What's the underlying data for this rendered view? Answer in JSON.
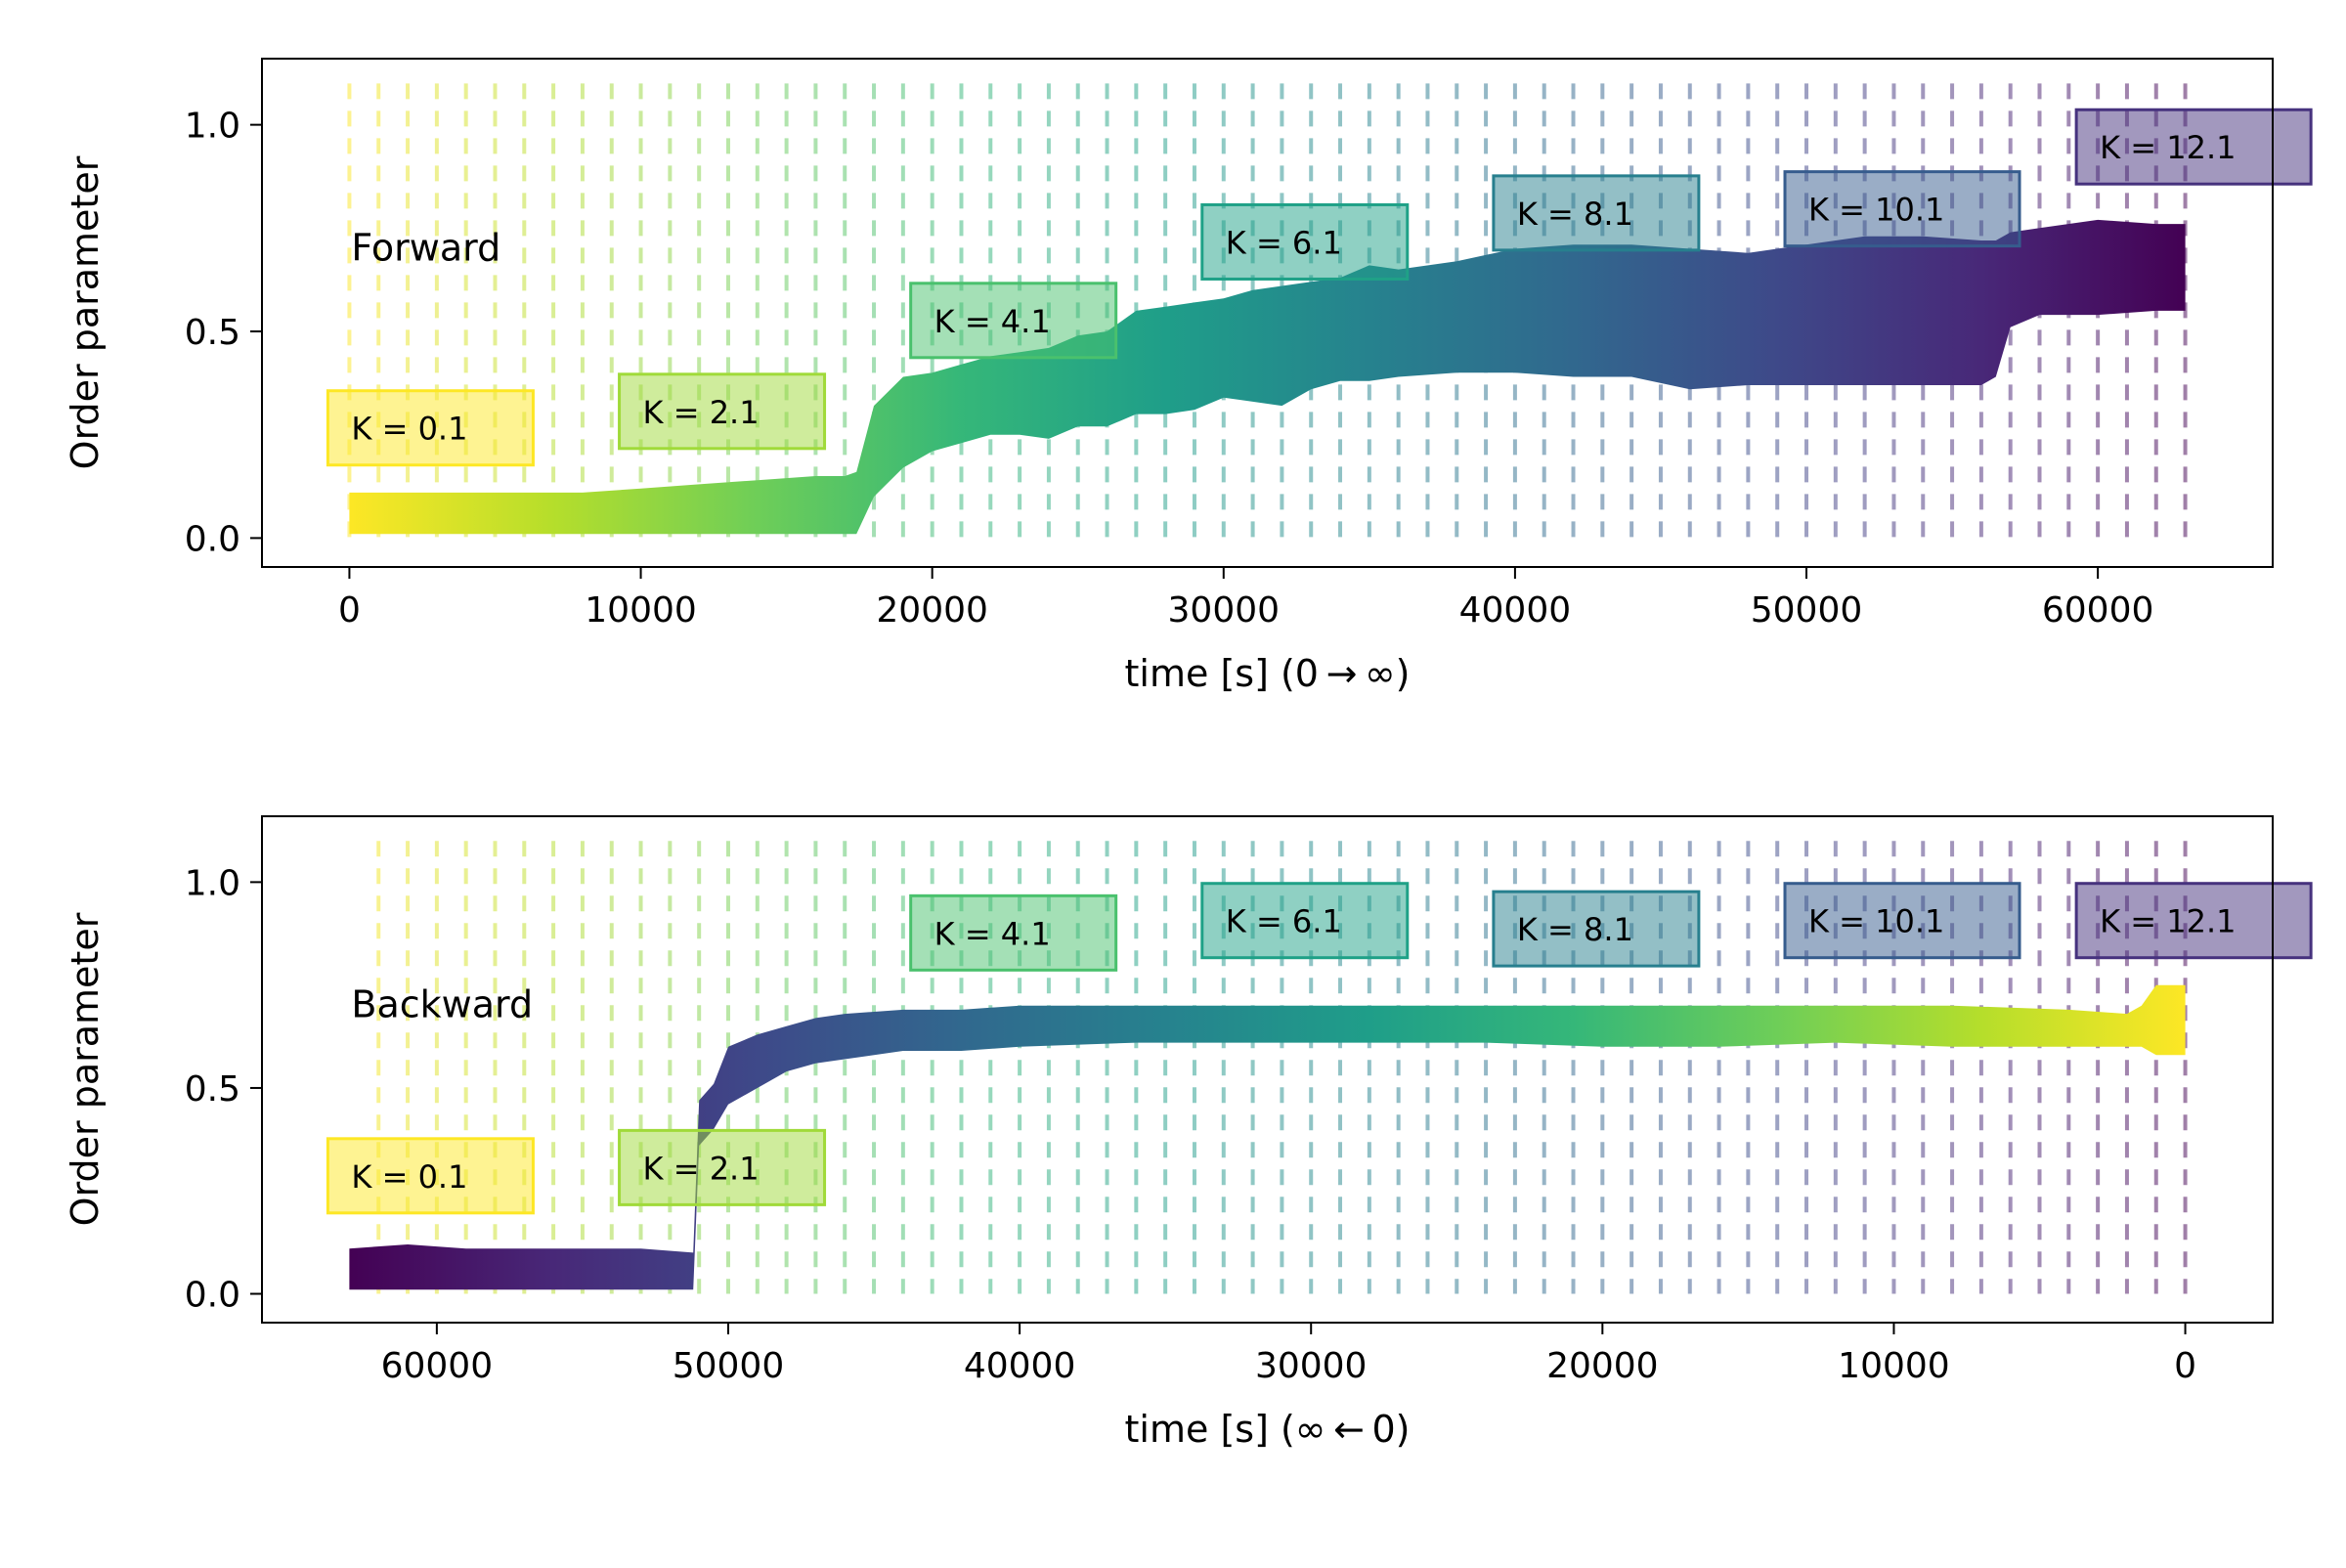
{
  "chart_data": [
    {
      "type": "line",
      "panel_label": "Forward",
      "xlabel": "time [s] (0 → ∞)",
      "ylabel": "Order parameter",
      "xlim": [
        -3000,
        66000
      ],
      "ylim": [
        -0.07,
        1.16
      ],
      "x_direction": "increasing",
      "xticks": [
        0,
        10000,
        20000,
        30000,
        40000,
        50000,
        60000
      ],
      "xtick_labels": [
        "0",
        "10000",
        "20000",
        "30000",
        "40000",
        "50000",
        "60000"
      ],
      "yticks": [
        0.0,
        0.5,
        1.0
      ],
      "ytick_labels": [
        "0.0",
        "0.5",
        "1.0"
      ],
      "colormap": "viridis_r",
      "grid": false,
      "k_annotations": [
        {
          "text": "K = 0.1",
          "x": 0,
          "y": 0.25,
          "color": "#fde725"
        },
        {
          "text": "K = 2.1",
          "x": 10000,
          "y": 0.29,
          "color": "#a0da39"
        },
        {
          "text": "K = 4.1",
          "x": 20000,
          "y": 0.51,
          "color": "#4ac16d"
        },
        {
          "text": "K = 6.1",
          "x": 30000,
          "y": 0.7,
          "color": "#1fa187"
        },
        {
          "text": "K = 8.1",
          "x": 40000,
          "y": 0.77,
          "color": "#277f8e"
        },
        {
          "text": "K = 10.1",
          "x": 50000,
          "y": 0.78,
          "color": "#365c8d"
        },
        {
          "text": "K = 12.1",
          "x": 60000,
          "y": 0.93,
          "color": "#46327e"
        }
      ],
      "series": [
        {
          "x": [
            0,
            2000,
            4000,
            6000,
            8000,
            10000,
            12000,
            14000,
            16000,
            17000,
            17400,
            18000,
            19000,
            20000,
            21000,
            22000,
            23000,
            24000,
            25000,
            26000,
            27000,
            28000,
            29000,
            30000,
            31000,
            32000,
            33000,
            34000,
            35000,
            36000,
            38000,
            40000,
            42000,
            44000,
            46000,
            48000,
            50000,
            52000,
            54000,
            56000,
            56500,
            57000,
            58000,
            60000,
            62000,
            63000
          ],
          "y_low": [
            0.01,
            0.01,
            0.01,
            0.01,
            0.01,
            0.01,
            0.01,
            0.01,
            0.01,
            0.01,
            0.01,
            0.1,
            0.17,
            0.21,
            0.23,
            0.25,
            0.25,
            0.24,
            0.27,
            0.27,
            0.3,
            0.3,
            0.31,
            0.34,
            0.33,
            0.32,
            0.36,
            0.38,
            0.38,
            0.39,
            0.4,
            0.4,
            0.39,
            0.39,
            0.36,
            0.37,
            0.37,
            0.37,
            0.37,
            0.37,
            0.39,
            0.51,
            0.54,
            0.54,
            0.55,
            0.55
          ],
          "y_high": [
            0.11,
            0.11,
            0.11,
            0.11,
            0.11,
            0.12,
            0.13,
            0.14,
            0.15,
            0.15,
            0.16,
            0.32,
            0.39,
            0.4,
            0.42,
            0.44,
            0.45,
            0.46,
            0.49,
            0.5,
            0.55,
            0.56,
            0.57,
            0.58,
            0.6,
            0.61,
            0.62,
            0.63,
            0.66,
            0.65,
            0.67,
            0.7,
            0.71,
            0.71,
            0.7,
            0.69,
            0.71,
            0.73,
            0.73,
            0.72,
            0.72,
            0.74,
            0.75,
            0.77,
            0.76,
            0.76
          ]
        }
      ]
    },
    {
      "type": "line",
      "panel_label": "Backward",
      "xlabel": "time [s] (∞ ← 0)",
      "ylabel": "Order parameter",
      "xlim": [
        66000,
        -3000
      ],
      "ylim": [
        -0.07,
        1.16
      ],
      "x_direction": "decreasing",
      "xticks": [
        60000,
        50000,
        40000,
        30000,
        20000,
        10000,
        0
      ],
      "xtick_labels": [
        "60000",
        "50000",
        "40000",
        "30000",
        "20000",
        "10000",
        "0"
      ],
      "yticks": [
        0.0,
        0.5,
        1.0
      ],
      "ytick_labels": [
        "0.0",
        "0.5",
        "1.0"
      ],
      "colormap": "viridis_r",
      "grid": false,
      "k_annotations": [
        {
          "text": "K = 0.1",
          "x": 63000,
          "y": 0.27,
          "color": "#fde725"
        },
        {
          "text": "K = 2.1",
          "x": 53000,
          "y": 0.29,
          "color": "#a0da39"
        },
        {
          "text": "K = 4.1",
          "x": 43000,
          "y": 0.86,
          "color": "#4ac16d"
        },
        {
          "text": "K = 6.1",
          "x": 33000,
          "y": 0.89,
          "color": "#1fa187"
        },
        {
          "text": "K = 8.1",
          "x": 23000,
          "y": 0.87,
          "color": "#277f8e"
        },
        {
          "text": "K = 10.1",
          "x": 13000,
          "y": 0.89,
          "color": "#365c8d"
        },
        {
          "text": "K = 12.1",
          "x": 3000,
          "y": 0.89,
          "color": "#46327e"
        }
      ],
      "series": [
        {
          "x": [
            63000,
            61000,
            59000,
            57000,
            55000,
            53000,
            51200,
            51000,
            50500,
            50000,
            49000,
            48000,
            47000,
            46000,
            44000,
            42000,
            40000,
            36000,
            32000,
            28000,
            24000,
            20000,
            16000,
            12000,
            8000,
            4000,
            2000,
            1500,
            1000,
            0
          ],
          "y_low": [
            0.01,
            0.01,
            0.01,
            0.01,
            0.01,
            0.01,
            0.01,
            0.36,
            0.4,
            0.46,
            0.5,
            0.54,
            0.56,
            0.57,
            0.59,
            0.59,
            0.6,
            0.61,
            0.61,
            0.61,
            0.61,
            0.6,
            0.6,
            0.61,
            0.6,
            0.6,
            0.6,
            0.6,
            0.58,
            0.58
          ],
          "y_high": [
            0.11,
            0.12,
            0.11,
            0.11,
            0.11,
            0.11,
            0.1,
            0.47,
            0.51,
            0.6,
            0.63,
            0.65,
            0.67,
            0.68,
            0.69,
            0.69,
            0.7,
            0.7,
            0.7,
            0.7,
            0.7,
            0.7,
            0.7,
            0.7,
            0.7,
            0.69,
            0.68,
            0.7,
            0.75,
            0.75
          ]
        }
      ]
    }
  ]
}
